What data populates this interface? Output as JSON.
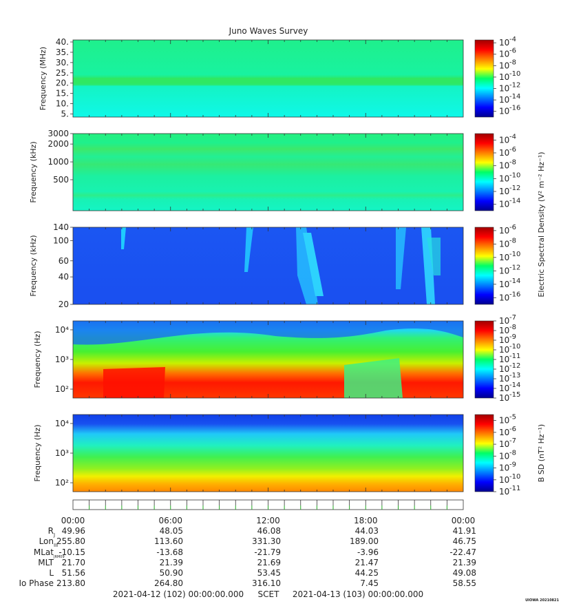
{
  "title": "Juno Waves Survey",
  "chart_data": [
    {
      "type": "heatmap",
      "ylabel": "Frequency (MHz)",
      "yticks": [
        "40.",
        "35.",
        "30.",
        "25.",
        "20.",
        "15.",
        "10.",
        "5."
      ],
      "ylim": [
        3.5,
        41
      ],
      "colorbar_ticks": [
        "-4",
        "-6",
        "-8",
        "-10",
        "-12",
        "-14",
        "-16"
      ],
      "colorbar_range_exp": [
        -17,
        -3.5
      ]
    },
    {
      "type": "heatmap",
      "ylabel": "Frequency (kHz)",
      "yticks": [
        "3000",
        "2000",
        "1000",
        "500"
      ],
      "ylim": [
        150,
        3000
      ],
      "yscale": "log",
      "colorbar_ticks": [
        "-4",
        "-6",
        "-8",
        "-10",
        "-12",
        "-14"
      ],
      "colorbar_range_exp": [
        -15,
        -3
      ],
      "colorbar_label": "Electric Spectral Density (V² m⁻² Hz⁻¹)"
    },
    {
      "type": "heatmap",
      "ylabel": "Frequency (kHz)",
      "yticks": [
        "140",
        "100",
        "60",
        "40",
        "20"
      ],
      "ylim": [
        20,
        140
      ],
      "yscale": "log",
      "colorbar_ticks": [
        "-6",
        "-8",
        "-10",
        "-12",
        "-14",
        "-16"
      ],
      "colorbar_range_exp": [
        -17,
        -5.5
      ]
    },
    {
      "type": "heatmap",
      "ylabel": "Frequency (Hz)",
      "yticks": [
        "10⁴",
        "10³",
        "10²"
      ],
      "ylim": [
        50,
        20000
      ],
      "yscale": "log",
      "colorbar_ticks": [
        "-7",
        "-8",
        "-9",
        "-10",
        "-11",
        "-12",
        "-13",
        "-14",
        "-15"
      ],
      "colorbar_range_exp": [
        -15,
        -7
      ]
    },
    {
      "type": "heatmap",
      "ylabel": "Frequency (Hz)",
      "yticks": [
        "10⁴",
        "10³",
        "10²"
      ],
      "ylim": [
        50,
        20000
      ],
      "yscale": "log",
      "colorbar_ticks": [
        "-5",
        "-6",
        "-7",
        "-8",
        "-9",
        "-10",
        "-11"
      ],
      "colorbar_range_exp": [
        -11,
        -4.5
      ],
      "colorbar_label": "B SD (nT² Hz⁻¹)"
    }
  ],
  "time_axis": {
    "labels": [
      "00:00",
      "06:00",
      "12:00",
      "18:00",
      "00:00"
    ],
    "range_hours": [
      0,
      24
    ],
    "label_hours": [
      0,
      6,
      12,
      18,
      24
    ]
  },
  "ephemeris": {
    "rows": [
      {
        "label": "RJ",
        "values": [
          "49.96",
          "48.05",
          "46.08",
          "44.03",
          "41.91"
        ]
      },
      {
        "label": "LonIII",
        "values": [
          "255.80",
          "113.60",
          "331.30",
          "189.00",
          "46.75"
        ]
      },
      {
        "label": "MLatJRM09",
        "values": [
          "-10.15",
          "-13.68",
          "-21.79",
          "-3.96",
          "-22.47"
        ]
      },
      {
        "label": "MLT",
        "values": [
          "21.70",
          "21.39",
          "21.69",
          "21.47",
          "21.39"
        ]
      },
      {
        "label": "L",
        "values": [
          "51.56",
          "50.90",
          "53.45",
          "44.25",
          "49.08"
        ]
      },
      {
        "label": "Io Phase",
        "values": [
          "213.80",
          "264.80",
          "316.10",
          "7.45",
          "58.55"
        ]
      }
    ]
  },
  "footer": {
    "start": "2021-04-12 (102) 00:00:00.000",
    "scet": "SCET",
    "end": "2021-04-13 (103) 00:00:00.000",
    "credit": "UIOWA 20210821"
  }
}
